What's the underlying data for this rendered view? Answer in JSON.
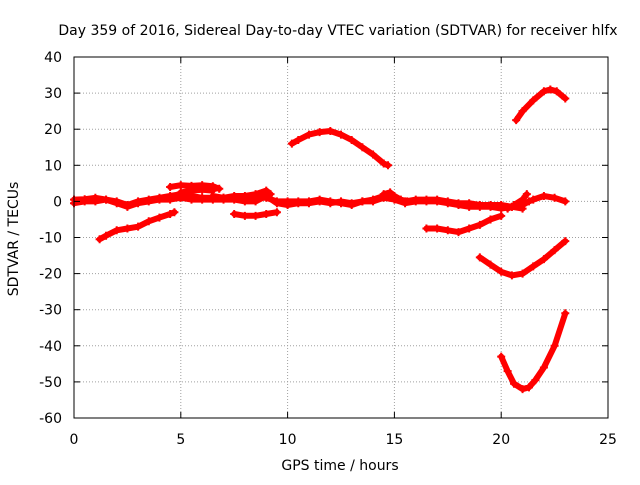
{
  "chart_data": {
    "type": "scatter",
    "title": "Day 359 of 2016, Sidereal Day-to-day VTEC variation (SDTVAR) for receiver hlfx",
    "xlabel": "GPS time / hours",
    "ylabel": "SDTVAR / TECUs",
    "xlim": [
      0,
      25
    ],
    "ylim": [
      -60,
      40
    ],
    "x_ticks": [
      "0",
      "5",
      "10",
      "15",
      "20",
      "25"
    ],
    "y_ticks": [
      "40",
      "30",
      "20",
      "10",
      "0",
      "-10",
      "-20",
      "-30",
      "-40",
      "-50",
      "-60"
    ],
    "grid": true,
    "series_color": "#ff0000",
    "series": [
      {
        "values": [
          [
            0.0,
            0.5
          ],
          [
            0.5,
            0.6
          ],
          [
            1.0,
            1.0
          ],
          [
            1.5,
            0.5
          ],
          [
            2.0,
            0.0
          ],
          [
            2.5,
            -1.0
          ],
          [
            3.0,
            0.0
          ],
          [
            3.5,
            0.5
          ],
          [
            4.0,
            1.0
          ],
          [
            4.5,
            1.5
          ],
          [
            5.0,
            2.0
          ],
          [
            5.5,
            1.5
          ],
          [
            6.0,
            1.0
          ],
          [
            6.5,
            1.0
          ],
          [
            7.0,
            1.0
          ],
          [
            7.5,
            0.8
          ],
          [
            8.0,
            0.5
          ],
          [
            8.5,
            1.0
          ],
          [
            9.0,
            1.0
          ],
          [
            9.5,
            0.0
          ],
          [
            10.0,
            0.0
          ],
          [
            10.5,
            0.0
          ],
          [
            11.0,
            0.0
          ],
          [
            11.5,
            0.5
          ],
          [
            12.0,
            0.0
          ],
          [
            12.5,
            -0.5
          ],
          [
            13.0,
            -1.0
          ],
          [
            13.5,
            0.0
          ],
          [
            14.0,
            0.5
          ],
          [
            14.5,
            1.5
          ],
          [
            15.0,
            1.0
          ],
          [
            15.5,
            0.0
          ],
          [
            16.0,
            0.5
          ],
          [
            16.5,
            0.5
          ],
          [
            17.0,
            0.5
          ],
          [
            17.5,
            0.0
          ],
          [
            18.0,
            -0.5
          ],
          [
            18.5,
            -0.5
          ],
          [
            19.0,
            -1.0
          ],
          [
            19.5,
            -1.0
          ],
          [
            20.0,
            -1.0
          ],
          [
            20.5,
            -1.5
          ],
          [
            21.0,
            -1.0
          ]
        ]
      },
      {
        "values": [
          [
            0.0,
            -0.5
          ],
          [
            0.5,
            0.0
          ],
          [
            1.0,
            0.0
          ],
          [
            1.5,
            0.5
          ],
          [
            2.0,
            -0.5
          ],
          [
            2.5,
            -1.5
          ],
          [
            3.0,
            -0.5
          ],
          [
            3.5,
            0.0
          ],
          [
            4.0,
            0.5
          ],
          [
            4.5,
            0.5
          ],
          [
            5.0,
            1.0
          ],
          [
            5.5,
            0.5
          ],
          [
            6.0,
            0.5
          ],
          [
            6.5,
            0.5
          ],
          [
            7.0,
            0.5
          ],
          [
            7.5,
            0.5
          ],
          [
            8.0,
            0.0
          ],
          [
            8.5,
            0.0
          ],
          [
            9.0,
            1.5
          ],
          [
            9.5,
            -0.5
          ],
          [
            10.0,
            -1.0
          ],
          [
            10.5,
            -0.5
          ],
          [
            11.0,
            -0.5
          ],
          [
            11.5,
            0.0
          ],
          [
            12.0,
            -0.5
          ],
          [
            12.5,
            0.0
          ],
          [
            13.0,
            -0.5
          ],
          [
            13.5,
            0.0
          ],
          [
            14.0,
            0.0
          ],
          [
            14.5,
            1.0
          ],
          [
            15.0,
            0.5
          ],
          [
            15.5,
            -0.5
          ],
          [
            16.0,
            0.0
          ],
          [
            16.5,
            0.0
          ],
          [
            17.0,
            0.0
          ],
          [
            17.5,
            -0.5
          ],
          [
            18.0,
            -1.0
          ],
          [
            18.5,
            -1.5
          ],
          [
            19.0,
            -1.5
          ],
          [
            19.5,
            -1.5
          ],
          [
            20.0,
            -2.0
          ],
          [
            20.5,
            -1.5
          ],
          [
            21.0,
            -2.0
          ]
        ]
      },
      {
        "values": [
          [
            4.5,
            4.0
          ],
          [
            5.0,
            4.5
          ],
          [
            5.5,
            4.3
          ],
          [
            6.0,
            4.5
          ],
          [
            6.5,
            4.2
          ],
          [
            6.8,
            3.5
          ]
        ]
      },
      {
        "values": [
          [
            5.0,
            2.5
          ],
          [
            5.5,
            3.0
          ],
          [
            6.0,
            3.2
          ],
          [
            6.5,
            3.0
          ]
        ]
      },
      {
        "values": [
          [
            6.5,
            1.5
          ],
          [
            7.0,
            1.0
          ],
          [
            7.5,
            1.5
          ],
          [
            8.0,
            1.5
          ],
          [
            8.5,
            2.0
          ],
          [
            9.0,
            3.0
          ],
          [
            9.2,
            2.0
          ]
        ]
      },
      {
        "values": [
          [
            1.2,
            -10.5
          ],
          [
            1.5,
            -9.5
          ],
          [
            2.0,
            -8.0
          ],
          [
            2.5,
            -7.5
          ],
          [
            3.0,
            -7.0
          ],
          [
            3.5,
            -5.5
          ],
          [
            4.0,
            -4.5
          ],
          [
            4.5,
            -3.5
          ],
          [
            4.7,
            -3.0
          ]
        ]
      },
      {
        "values": [
          [
            7.5,
            -3.5
          ],
          [
            8.0,
            -4.0
          ],
          [
            8.5,
            -4.0
          ],
          [
            9.0,
            -3.5
          ],
          [
            9.5,
            -3.0
          ]
        ]
      },
      {
        "values": [
          [
            10.2,
            16.0
          ],
          [
            10.5,
            17.0
          ],
          [
            11.0,
            18.5
          ],
          [
            11.5,
            19.2
          ],
          [
            12.0,
            19.5
          ],
          [
            12.5,
            18.5
          ],
          [
            13.0,
            17.0
          ],
          [
            13.5,
            15.0
          ],
          [
            14.0,
            13.0
          ],
          [
            14.5,
            10.5
          ],
          [
            14.7,
            10.0
          ]
        ]
      },
      {
        "values": [
          [
            14.5,
            2.0
          ],
          [
            14.8,
            2.5
          ],
          [
            15.0,
            1.5
          ],
          [
            15.3,
            0.5
          ],
          [
            15.6,
            0.0
          ]
        ]
      },
      {
        "values": [
          [
            16.5,
            -7.5
          ],
          [
            17.0,
            -7.5
          ],
          [
            17.5,
            -8.0
          ],
          [
            18.0,
            -8.5
          ],
          [
            18.5,
            -7.5
          ],
          [
            19.0,
            -6.5
          ],
          [
            19.5,
            -5.0
          ],
          [
            20.0,
            -4.0
          ]
        ]
      },
      {
        "values": [
          [
            19.0,
            -15.5
          ],
          [
            19.5,
            -17.5
          ],
          [
            20.0,
            -19.5
          ],
          [
            20.5,
            -20.5
          ],
          [
            21.0,
            -20.0
          ],
          [
            21.5,
            -18.0
          ],
          [
            22.0,
            -16.0
          ],
          [
            22.5,
            -13.5
          ],
          [
            23.0,
            -11.0
          ]
        ]
      },
      {
        "values": [
          [
            20.0,
            -43.0
          ],
          [
            20.3,
            -47.0
          ],
          [
            20.6,
            -50.5
          ],
          [
            21.0,
            -52.0
          ],
          [
            21.3,
            -51.5
          ],
          [
            21.6,
            -49.5
          ],
          [
            22.0,
            -46.0
          ],
          [
            22.5,
            -40.0
          ],
          [
            23.0,
            -31.0
          ]
        ]
      },
      {
        "values": [
          [
            20.7,
            22.5
          ],
          [
            21.0,
            25.0
          ],
          [
            21.5,
            28.0
          ],
          [
            22.0,
            30.5
          ],
          [
            22.3,
            31.0
          ],
          [
            22.6,
            30.5
          ],
          [
            23.0,
            28.5
          ]
        ]
      },
      {
        "values": [
          [
            20.8,
            -1.0
          ],
          [
            21.0,
            -1.0
          ],
          [
            21.3,
            0.0
          ],
          [
            21.5,
            0.5
          ],
          [
            22.0,
            1.5
          ],
          [
            22.5,
            1.0
          ],
          [
            23.0,
            0.0
          ]
        ]
      },
      {
        "values": [
          [
            20.3,
            -2.0
          ],
          [
            20.6,
            -1.0
          ],
          [
            21.0,
            0.5
          ],
          [
            21.2,
            2.0
          ]
        ]
      }
    ]
  }
}
